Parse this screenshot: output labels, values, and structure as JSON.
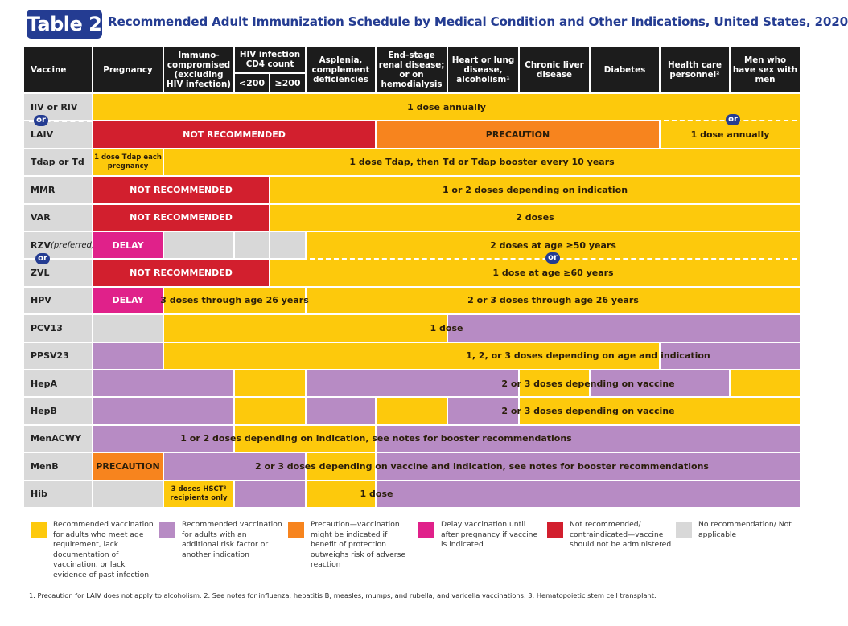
{
  "badge": "Table 2",
  "title": "Recommended Adult Immunization Schedule by Medical Condition and Other Indications, United States, 2020",
  "colors": {
    "Y": "#fdc90c",
    "P": "#b78bc4",
    "O": "#f7841e",
    "R": "#d21f2e",
    "M": "#e0218a",
    "G": "#d8d8d8"
  },
  "header": {
    "vaccine": "Vaccine",
    "columns": [
      "Pregnancy",
      "Immuno-compromised (excluding HIV infection)",
      "HIV infection CD4 count",
      "Asplenia, complement deficiencies",
      "End-stage renal disease; or on hemodialysis",
      "Heart or lung disease, alcoholism¹",
      "Chronic liver disease",
      "Diabetes",
      "Health care personnel²",
      "Men who have sex with men"
    ],
    "hiv_sub": [
      "<200",
      "≥200"
    ]
  },
  "or_label": "or",
  "rows": [
    {
      "name": "IIV or RIV",
      "segs": [
        [
          0,
          10,
          "Y"
        ]
      ],
      "labels": [
        {
          "t": "1 dose annually",
          "c": [
            0,
            10
          ]
        }
      ]
    },
    {
      "name": "LAIV",
      "segs": [
        [
          0,
          4,
          "R"
        ],
        [
          5,
          8,
          "O"
        ],
        [
          9,
          10,
          "Y"
        ]
      ],
      "labels": [
        {
          "t": "NOT RECOMMENDED",
          "c": [
            0,
            4
          ],
          "w": 1
        },
        {
          "t": "PRECAUTION",
          "c": [
            5,
            8
          ]
        },
        {
          "t": "1 dose annually",
          "c": [
            9,
            10
          ]
        }
      ]
    },
    {
      "name": "Tdap or Td",
      "segs": [
        [
          0,
          0,
          "Y"
        ],
        [
          1,
          10,
          "Y"
        ]
      ],
      "labels": [
        {
          "t": "1 dose Tdap each pregnancy",
          "c": [
            0,
            0
          ],
          "s": 1
        },
        {
          "t": "1 dose Tdap, then Td or Tdap booster every 10 years",
          "c": [
            1,
            10
          ]
        }
      ]
    },
    {
      "name": "MMR",
      "segs": [
        [
          0,
          2,
          "R"
        ],
        [
          3,
          10,
          "Y"
        ]
      ],
      "labels": [
        {
          "t": "NOT RECOMMENDED",
          "c": [
            0,
            2
          ],
          "w": 1
        },
        {
          "t": "1 or 2 doses depending on indication",
          "c": [
            3,
            10
          ]
        }
      ]
    },
    {
      "name": "VAR",
      "segs": [
        [
          0,
          2,
          "R"
        ],
        [
          3,
          10,
          "Y"
        ]
      ],
      "labels": [
        {
          "t": "NOT RECOMMENDED",
          "c": [
            0,
            2
          ],
          "w": 1
        },
        {
          "t": "2 doses",
          "c": [
            3,
            10
          ]
        }
      ]
    },
    {
      "name": "RZV",
      "note": "(preferred)",
      "segs": [
        [
          0,
          0,
          "M"
        ],
        [
          1,
          1,
          "G"
        ],
        [
          2,
          2,
          "G"
        ],
        [
          3,
          3,
          "G"
        ],
        [
          4,
          10,
          "Y"
        ]
      ],
      "labels": [
        {
          "t": "DELAY",
          "c": [
            0,
            0
          ],
          "w": 1
        },
        {
          "t": "2 doses at age ≥50 years",
          "c": [
            4,
            10
          ]
        }
      ]
    },
    {
      "name": "ZVL",
      "segs": [
        [
          0,
          2,
          "R"
        ],
        [
          3,
          10,
          "Y"
        ]
      ],
      "labels": [
        {
          "t": "NOT RECOMMENDED",
          "c": [
            0,
            2
          ],
          "w": 1
        },
        {
          "t": "1 dose at age ≥60 years",
          "c": [
            4,
            10
          ]
        }
      ]
    },
    {
      "name": "HPV",
      "segs": [
        [
          0,
          0,
          "M"
        ],
        [
          1,
          3,
          "Y"
        ],
        [
          4,
          10,
          "Y"
        ]
      ],
      "labels": [
        {
          "t": "DELAY",
          "c": [
            0,
            0
          ],
          "w": 1
        },
        {
          "t": "3 doses through age 26 years",
          "c": [
            1,
            3
          ]
        },
        {
          "t": "2 or 3 doses through age 26 years",
          "c": [
            4,
            10
          ]
        }
      ]
    },
    {
      "name": "PCV13",
      "segs": [
        [
          0,
          0,
          "G"
        ],
        [
          1,
          5,
          "Y"
        ],
        [
          6,
          10,
          "P"
        ]
      ],
      "labels": [
        {
          "t": "1 dose",
          "c": [
            1,
            9
          ]
        }
      ]
    },
    {
      "name": "PPSV23",
      "segs": [
        [
          0,
          0,
          "P"
        ],
        [
          1,
          8,
          "Y"
        ],
        [
          9,
          10,
          "P"
        ]
      ],
      "labels": [
        {
          "t": "1, 2, or 3 doses depending on age and indication",
          "c": [
            5,
            10
          ]
        }
      ]
    },
    {
      "name": "HepA",
      "segs": [
        [
          0,
          1,
          "P"
        ],
        [
          2,
          3,
          "Y"
        ],
        [
          4,
          6,
          "P"
        ],
        [
          7,
          7,
          "Y"
        ],
        [
          8,
          9,
          "P"
        ],
        [
          10,
          10,
          "Y"
        ]
      ],
      "labels": [
        {
          "t": "2 or 3 doses depending on vaccine",
          "c": [
            5,
            10
          ]
        }
      ]
    },
    {
      "name": "HepB",
      "segs": [
        [
          0,
          1,
          "P"
        ],
        [
          2,
          3,
          "Y"
        ],
        [
          4,
          4,
          "P"
        ],
        [
          5,
          5,
          "Y"
        ],
        [
          6,
          6,
          "P"
        ],
        [
          7,
          10,
          "Y"
        ]
      ],
      "labels": [
        {
          "t": "2 or 3 doses depending on vaccine",
          "c": [
            5,
            10
          ]
        }
      ]
    },
    {
      "name": "MenACWY",
      "segs": [
        [
          0,
          1,
          "P"
        ],
        [
          2,
          4,
          "Y"
        ],
        [
          5,
          10,
          "P"
        ]
      ],
      "labels": [
        {
          "t": "1 or 2 doses depending on indication, see notes for booster recommendations",
          "c": [
            0,
            8
          ]
        }
      ]
    },
    {
      "name": "MenB",
      "segs": [
        [
          0,
          0,
          "O"
        ],
        [
          1,
          3,
          "P"
        ],
        [
          4,
          4,
          "Y"
        ],
        [
          5,
          10,
          "P"
        ]
      ],
      "labels": [
        {
          "t": "PRECAUTION",
          "c": [
            0,
            0
          ]
        },
        {
          "t": "2 or 3 doses depending on vaccine and indication, see notes for booster recommendations",
          "c": [
            1,
            10
          ]
        }
      ]
    },
    {
      "name": "Hib",
      "segs": [
        [
          0,
          0,
          "G"
        ],
        [
          1,
          1,
          "Y"
        ],
        [
          2,
          3,
          "P"
        ],
        [
          4,
          4,
          "Y"
        ],
        [
          5,
          10,
          "P"
        ]
      ],
      "labels": [
        {
          "t": "3 doses HSCT³ recipients only",
          "c": [
            1,
            1
          ],
          "s": 1
        },
        {
          "t": "1 dose",
          "c": [
            4,
            5
          ]
        }
      ]
    }
  ],
  "legend": [
    {
      "color": "Y",
      "text": "Recommended vaccination for adults who meet age requirement, lack documentation of vaccination, or lack evidence of past infection"
    },
    {
      "color": "P",
      "text": "Recommended vaccination for adults with an additional risk factor or another indication"
    },
    {
      "color": "O",
      "text": "Precaution—vaccination might be indicated if benefit of protection outweighs risk of adverse reaction"
    },
    {
      "color": "M",
      "text": "Delay vaccination until after pregnancy if vaccine is indicated"
    },
    {
      "color": "R",
      "text": "Not recommended/ contraindicated—vaccine should not be administered"
    },
    {
      "color": "G",
      "text": "No recommendation/ Not applicable"
    }
  ],
  "footnote": "1. Precaution for LAIV does not apply to alcoholism. 2. See notes for influenza; hepatitis B; measles, mumps, and rubella; and varicella vaccinations. 3. Hematopoietic stem cell transplant."
}
